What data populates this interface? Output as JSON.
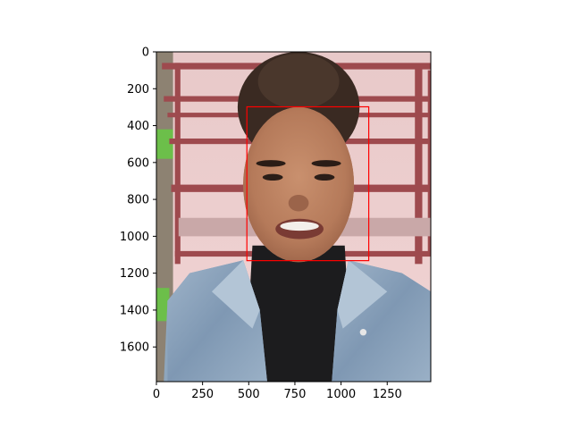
{
  "chart_data": {
    "type": "image",
    "title": "",
    "xlabel": "",
    "ylabel": "",
    "xlim": [
      0,
      1486
    ],
    "ylim": [
      1788,
      0
    ],
    "x_ticks": [
      0,
      250,
      500,
      750,
      1000,
      1250
    ],
    "y_ticks": [
      0,
      200,
      400,
      600,
      800,
      1000,
      1200,
      1400,
      1600
    ],
    "grid": false,
    "image": {
      "subject": "smiling woman with dark hair in a denim jacket over a black turtleneck",
      "background": "red metal bench frames and a pink wall"
    },
    "annotations": [
      {
        "type": "rectangle",
        "label": "face-box",
        "x0": 490,
        "y0": 298,
        "x1": 1150,
        "y1": 1132,
        "color": "#ff0000"
      }
    ]
  }
}
